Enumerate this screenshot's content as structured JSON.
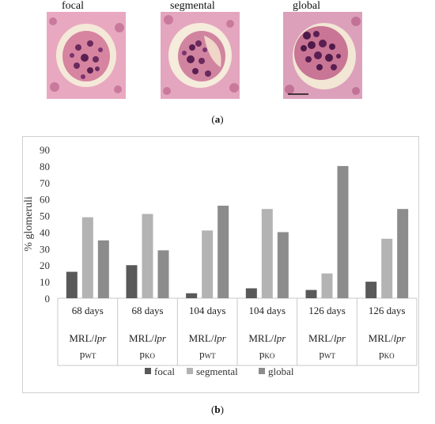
{
  "panel_a": {
    "image_labels": [
      "focal",
      "segmental",
      "global"
    ],
    "caption_prefix": "(",
    "caption_letter": "a",
    "caption_suffix": ")"
  },
  "panel_b": {
    "caption_prefix": "(",
    "caption_letter": "b",
    "caption_suffix": ")"
  },
  "chart_data": {
    "type": "bar",
    "ylabel": "% glomeruli",
    "ylim": [
      0,
      90
    ],
    "yticks": [
      0,
      10,
      20,
      30,
      40,
      50,
      60,
      70,
      80,
      90
    ],
    "grid": false,
    "legend": "bottom",
    "categories": [
      {
        "days": "68 days",
        "strain_plain": "MRL/",
        "strain_italic": "lpr",
        "genotype": "p",
        "genotype_sub": "WT"
      },
      {
        "days": "68 days",
        "strain_plain": "MRL/",
        "strain_italic": "lpr",
        "genotype": "p",
        "genotype_sub": "KO"
      },
      {
        "days": "104 days",
        "strain_plain": "MRL/",
        "strain_italic": "lpr",
        "genotype": "p",
        "genotype_sub": "WT"
      },
      {
        "days": "104 days",
        "strain_plain": "MRL/",
        "strain_italic": "lpr",
        "genotype": "p",
        "genotype_sub": "KO"
      },
      {
        "days": "126 days",
        "strain_plain": "MRL/",
        "strain_italic": "lpr",
        "genotype": "p",
        "genotype_sub": "WT"
      },
      {
        "days": "126 days",
        "strain_plain": "MRL/",
        "strain_italic": "lpr",
        "genotype": "p",
        "genotype_sub": "KO"
      }
    ],
    "series": [
      {
        "name": "focal",
        "color": "#595959",
        "values": [
          16,
          20,
          3,
          6,
          5,
          10
        ]
      },
      {
        "name": "segmental",
        "color": "#b3b3b3",
        "values": [
          49,
          51,
          41,
          54,
          15,
          36
        ]
      },
      {
        "name": "global",
        "color": "#8c8c8c",
        "values": [
          35,
          29,
          56,
          40,
          80,
          54
        ]
      }
    ]
  }
}
